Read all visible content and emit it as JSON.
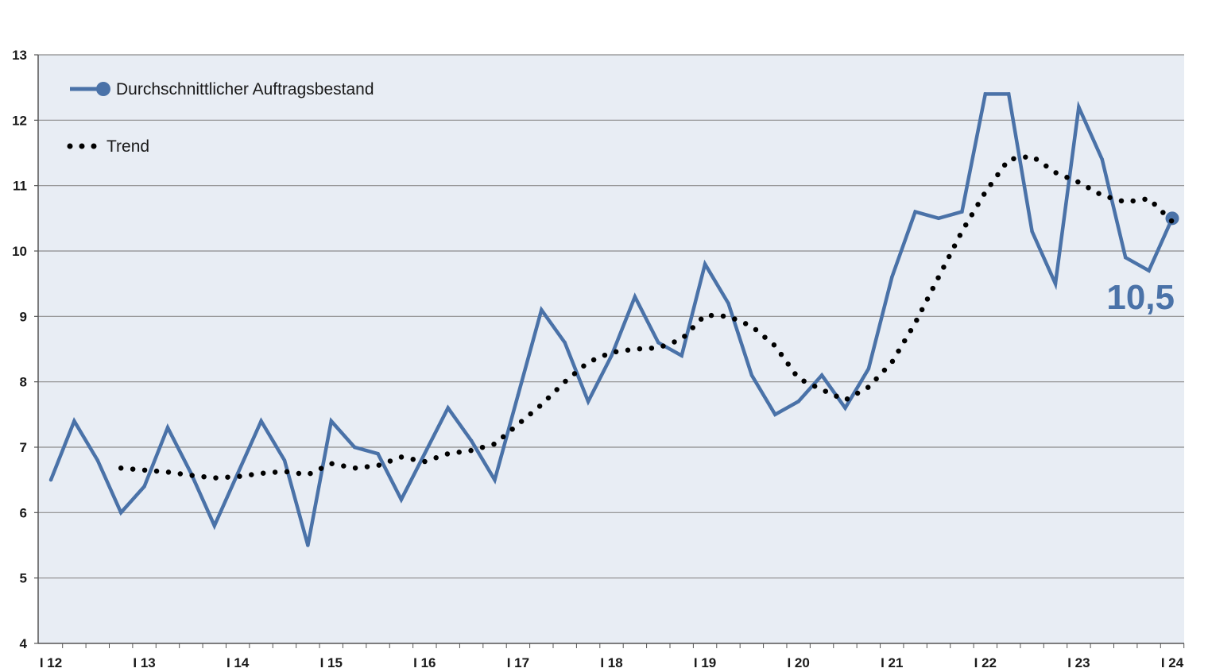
{
  "chart_data": {
    "type": "line",
    "title": "",
    "xlabel": "",
    "ylabel": "",
    "ylim": [
      4,
      13
    ],
    "yticks": [
      4,
      5,
      6,
      7,
      8,
      9,
      10,
      11,
      12,
      13
    ],
    "x_tick_labels": [
      "I 12",
      "I 13",
      "I 14",
      "I 15",
      "I 16",
      "I 17",
      "I 18",
      "I 19",
      "I 20",
      "I 21",
      "I 22",
      "I 23",
      "I 24"
    ],
    "grid": true,
    "legend_position": "top-left",
    "background_color": "#e8edf4",
    "series": [
      {
        "name": "Durchschnittlicher Auftragsbestand",
        "color": "#4a72a8",
        "style": "solid",
        "values": [
          6.5,
          7.4,
          6.8,
          6.0,
          6.4,
          7.3,
          6.6,
          5.8,
          6.6,
          7.4,
          6.8,
          5.5,
          7.4,
          7.0,
          6.9,
          6.2,
          6.9,
          7.6,
          7.1,
          6.5,
          7.8,
          9.1,
          8.6,
          7.7,
          8.4,
          9.3,
          8.6,
          8.4,
          9.8,
          9.2,
          8.1,
          7.5,
          7.7,
          8.1,
          7.6,
          8.2,
          9.6,
          10.6,
          10.5,
          10.6,
          12.4,
          12.4,
          10.3,
          9.5,
          12.2,
          11.4,
          9.9,
          9.7,
          10.5
        ]
      },
      {
        "name": "Trend",
        "color": "#000000",
        "style": "dotted",
        "values": [
          null,
          null,
          null,
          6.68,
          6.65,
          6.62,
          6.57,
          6.53,
          6.55,
          6.6,
          6.63,
          6.58,
          6.75,
          6.68,
          6.72,
          6.85,
          6.78,
          6.9,
          6.95,
          7.05,
          7.35,
          7.65,
          8.0,
          8.3,
          8.45,
          8.5,
          8.52,
          8.65,
          9.02,
          9.0,
          8.85,
          8.55,
          8.05,
          7.88,
          7.72,
          7.92,
          8.3,
          8.9,
          9.6,
          10.3,
          10.9,
          11.4,
          11.45,
          11.2,
          11.05,
          10.85,
          10.75,
          10.8,
          10.45
        ]
      }
    ],
    "annotations": [
      {
        "text": "10,5",
        "color": "#4a72a8"
      }
    ]
  }
}
